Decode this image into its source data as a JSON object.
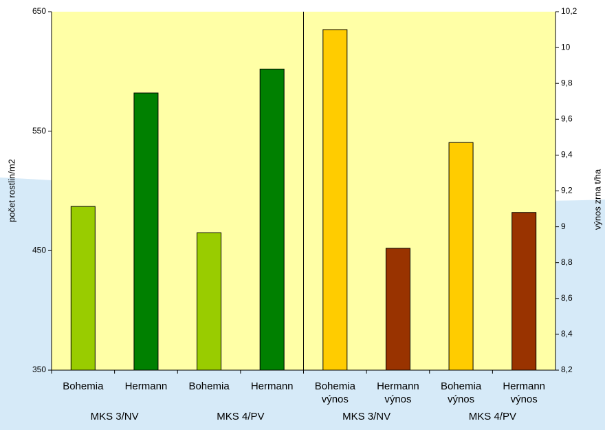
{
  "chart_data": {
    "type": "bar",
    "categories": [
      "Bohemia",
      "Hermann",
      "Bohemia",
      "Hermann",
      "Bohemia výnos",
      "Hermann výnos",
      "Bohemia výnos",
      "Hermann výnos"
    ],
    "groups": [
      "MKS 3/NV",
      "MKS 4/PV",
      "MKS 3/NV",
      "MKS 4/PV"
    ],
    "values": [
      487,
      582,
      465,
      602,
      10.1,
      8.88,
      9.47,
      9.08
    ],
    "colors": [
      "#99cc00",
      "#008000",
      "#99cc00",
      "#008000",
      "#ffcc00",
      "#993300",
      "#ffcc00",
      "#993300"
    ],
    "axes": [
      "y",
      "y",
      "y",
      "y",
      "y2",
      "y2",
      "y2",
      "y2"
    ],
    "ylabel": "počet rostlin/m2",
    "y2label": "výnos zrna t/ha",
    "ylim": [
      350,
      650
    ],
    "yticks": [
      350,
      450,
      550,
      650
    ],
    "y2lim": [
      8.2,
      10.2
    ],
    "y2ticks": [
      {
        "value": 8.2,
        "label": "8,2"
      },
      {
        "value": 8.4,
        "label": "8,4"
      },
      {
        "value": 8.6,
        "label": "8,6"
      },
      {
        "value": 8.8,
        "label": "8,8"
      },
      9,
      {
        "value": 9.2,
        "label": "9,2"
      },
      {
        "value": 9.4,
        "label": "9,4"
      },
      {
        "value": 9.6,
        "label": "9,6"
      },
      {
        "value": 9.8,
        "label": "9,8"
      },
      10,
      {
        "value": 10.2,
        "label": "10,2"
      }
    ]
  }
}
